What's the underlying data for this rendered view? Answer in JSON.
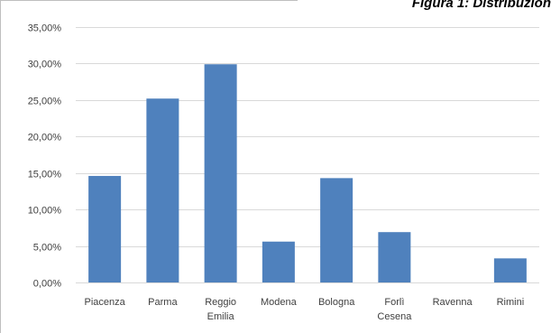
{
  "chart_data": {
    "type": "bar",
    "title": "Figura 1: Distribuzion",
    "categories": [
      "Piacenza",
      "Parma",
      "Reggio Emilia",
      "Modena",
      "Bologna",
      "Forlì Cesena",
      "Ravenna",
      "Rimini"
    ],
    "category_lines": [
      [
        "Piacenza"
      ],
      [
        "Parma"
      ],
      [
        "Reggio",
        "Emilia"
      ],
      [
        "Modena"
      ],
      [
        "Bologna"
      ],
      [
        "Forlì",
        "Cesena"
      ],
      [
        "Ravenna"
      ],
      [
        "Rimini"
      ]
    ],
    "values": [
      14.6,
      25.2,
      29.9,
      5.6,
      14.3,
      6.9,
      0,
      3.3
    ],
    "ylim": [
      0,
      35
    ],
    "ytick_values": [
      0,
      5,
      10,
      15,
      20,
      25,
      30,
      35
    ],
    "ytick_labels": [
      "0,00%",
      "5,00%",
      "10,00%",
      "15,00%",
      "20,00%",
      "25,00%",
      "30,00%",
      "35,00%"
    ],
    "grid": true,
    "legend": "none",
    "bar_color": "#4f81bd",
    "grid_color": "#d9d9d9"
  }
}
